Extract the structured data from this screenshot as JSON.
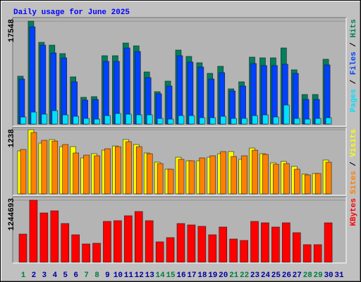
{
  "title": "Daily usage for June 2025",
  "chart_data": [
    {
      "type": "bar",
      "ylim": [
        0,
        17548
      ],
      "yticks": [
        17548
      ],
      "separator": "/",
      "series": [
        {
          "name": "Hits",
          "color": "#00805c",
          "values": [
            8173,
            17548,
            13942,
            13461,
            12019,
            8053,
            4567,
            4687,
            11659,
            11659,
            13822,
            13341,
            8894,
            5529,
            7332,
            12620,
            11538,
            10457,
            8654,
            9856,
            6010,
            7211,
            11418,
            11298,
            11298,
            12981,
            9255,
            5048,
            5048,
            11058,
            null
          ]
        },
        {
          "name": "Files",
          "color": "#0040ff",
          "values": [
            7692,
            16587,
            13461,
            12140,
            11298,
            7211,
            4087,
            4207,
            10697,
            10697,
            12981,
            12380,
            7933,
            5168,
            6490,
            11659,
            10577,
            9736,
            7692,
            8774,
            5649,
            6490,
            10337,
            9976,
            9976,
            10217,
            8654,
            4207,
            4207,
            10096,
            null
          ]
        },
        {
          "name": "Pages",
          "color": "#00e0ff",
          "values": [
            1202,
            2043,
            1683,
            2284,
            1563,
            1322,
            962,
            841,
            1442,
            1803,
            1683,
            1563,
            1563,
            962,
            841,
            1442,
            1442,
            1082,
            1082,
            1322,
            962,
            962,
            1442,
            1563,
            1202,
            3245,
            962,
            841,
            962,
            1082,
            null
          ]
        }
      ]
    },
    {
      "type": "bar",
      "ylim": [
        0,
        1238
      ],
      "yticks": [
        1238
      ],
      "separator": "/",
      "series": [
        {
          "name": "Visits",
          "color": "#ffff00",
          "values": [
            830,
            1238,
            980,
            1048,
            911,
            911,
            694,
            775,
            843,
            925,
            1048,
            952,
            789,
            612,
            476,
            707,
            639,
            639,
            707,
            775,
            816,
            667,
            884,
            775,
            598,
            626,
            530,
            381,
            394,
            653,
            null
          ]
        },
        {
          "name": "Sites",
          "color": "#ff8000",
          "values": [
            857,
            1184,
            1034,
            1020,
            952,
            789,
            748,
            735,
            871,
            911,
            1007,
            911,
            775,
            585,
            476,
            667,
            639,
            694,
            735,
            816,
            721,
            735,
            843,
            762,
            571,
            585,
            476,
            367,
            394,
            612,
            null
          ]
        }
      ]
    },
    {
      "type": "bar",
      "ylim": [
        0,
        1244693
      ],
      "yticks": [
        1244693
      ],
      "categories": [
        "1",
        "2",
        "3",
        "4",
        "5",
        "6",
        "7",
        "8",
        "9",
        "10",
        "11",
        "12",
        "13",
        "14",
        "15",
        "16",
        "17",
        "18",
        "19",
        "20",
        "21",
        "22",
        "23",
        "24",
        "25",
        "26",
        "27",
        "28",
        "29",
        "30",
        "31"
      ],
      "category_colors": [
        "#008040",
        "#0000a0",
        "#0000a0",
        "#0000a0",
        "#0000a0",
        "#0000a0",
        "#008040",
        "#008040",
        "#0000a0",
        "#0000a0",
        "#0000a0",
        "#0000a0",
        "#0000a0",
        "#008040",
        "#008040",
        "#0000a0",
        "#0000a0",
        "#0000a0",
        "#0000a0",
        "#0000a0",
        "#008040",
        "#008040",
        "#0000a0",
        "#0000a0",
        "#0000a0",
        "#0000a0",
        "#0000a0",
        "#008040",
        "#008040",
        "#0000a0",
        "#0000a0"
      ],
      "series": [
        {
          "name": "KBytes",
          "color": "#ff0000",
          "values": [
            565770,
            1244693,
            990097,
            1032529,
            777933,
            551627,
            367750,
            381894,
            820365,
            834510,
            933519,
            1018385,
            834510,
            410183,
            495048,
            777933,
            749644,
            721356,
            551627,
            707212,
            466760,
            438471,
            820365,
            792077,
            707212,
            792077,
            594058,
            353606,
            353606,
            792077,
            null
          ]
        }
      ]
    }
  ]
}
